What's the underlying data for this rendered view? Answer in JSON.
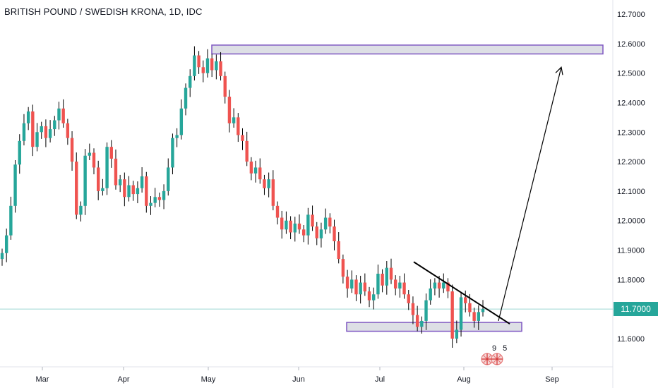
{
  "chart_title": "BRITISH POUND / SWEDISH KRONA, 1D, IDC",
  "current_price": "11.7000",
  "badge_number": "9 5",
  "colors": {
    "up": "#26a69a",
    "down": "#ef5350",
    "wick": "#000000",
    "zone_fill": "#d1d4dc",
    "zone_border": "#7e57c2",
    "price_line": "#9fd8d4",
    "text": "#131722",
    "axis_line": "#d6d9e0"
  },
  "chart_data": {
    "type": "candlestick",
    "title": "BRITISH POUND / SWEDISH KRONA, 1D, IDC",
    "ylim": [
      11.5,
      12.74
    ],
    "y_ticks": [
      "12.7000",
      "12.6000",
      "12.5000",
      "12.4000",
      "12.3000",
      "12.2000",
      "12.1000",
      "12.0000",
      "11.9000",
      "11.8000",
      "11.7000",
      "11.6000"
    ],
    "x_ticks": [
      "Mar",
      "Apr",
      "May",
      "Jun",
      "Jul",
      "Aug",
      "Sep"
    ],
    "current_price": 11.7,
    "price_tags": [
      {
        "v": 11.89,
        "c": "up"
      },
      {
        "v": 11.95,
        "c": "up"
      },
      {
        "v": 12.05,
        "c": "up"
      },
      {
        "v": 12.19,
        "c": "up"
      },
      {
        "v": 12.27,
        "c": "up"
      },
      {
        "v": 12.33,
        "c": "up"
      },
      {
        "v": 12.37,
        "c": "up"
      },
      {
        "v": 12.25,
        "c": "down"
      },
      {
        "v": 12.3,
        "c": "up"
      },
      {
        "v": 12.32,
        "c": "up"
      },
      {
        "v": 12.28,
        "c": "down"
      },
      {
        "v": 12.31,
        "c": "up"
      },
      {
        "v": 12.34,
        "c": "up"
      },
      {
        "v": 12.38,
        "c": "up"
      },
      {
        "v": 12.33,
        "c": "down"
      },
      {
        "v": 12.28,
        "c": "down"
      },
      {
        "v": 12.2,
        "c": "down"
      },
      {
        "v": 12.02,
        "c": "down"
      },
      {
        "v": 12.05,
        "c": "up"
      },
      {
        "v": 12.22,
        "c": "up"
      },
      {
        "v": 12.23,
        "c": "down"
      },
      {
        "v": 12.18,
        "c": "down"
      },
      {
        "v": 12.1,
        "c": "down"
      },
      {
        "v": 12.11,
        "c": "up"
      },
      {
        "v": 12.25,
        "c": "up"
      },
      {
        "v": 12.21,
        "c": "down"
      },
      {
        "v": 12.12,
        "c": "down"
      },
      {
        "v": 12.14,
        "c": "up"
      },
      {
        "v": 12.08,
        "c": "down"
      },
      {
        "v": 12.12,
        "c": "up"
      },
      {
        "v": 12.09,
        "c": "down"
      },
      {
        "v": 12.11,
        "c": "up"
      },
      {
        "v": 12.15,
        "c": "up"
      },
      {
        "v": 12.05,
        "c": "down"
      },
      {
        "v": 12.06,
        "c": "up"
      },
      {
        "v": 12.08,
        "c": "up"
      },
      {
        "v": 12.07,
        "c": "down"
      },
      {
        "v": 12.1,
        "c": "up"
      },
      {
        "v": 12.18,
        "c": "up"
      },
      {
        "v": 12.28,
        "c": "up"
      },
      {
        "v": 12.29,
        "c": "up"
      },
      {
        "v": 12.38,
        "c": "up"
      },
      {
        "v": 12.45,
        "c": "up"
      },
      {
        "v": 12.49,
        "c": "up"
      },
      {
        "v": 12.56,
        "c": "up"
      },
      {
        "v": 12.52,
        "c": "down"
      },
      {
        "v": 12.5,
        "c": "down"
      },
      {
        "v": 12.55,
        "c": "up"
      },
      {
        "v": 12.51,
        "c": "down"
      },
      {
        "v": 12.54,
        "c": "up"
      },
      {
        "v": 12.49,
        "c": "down"
      },
      {
        "v": 12.42,
        "c": "down"
      },
      {
        "v": 12.33,
        "c": "down"
      },
      {
        "v": 12.35,
        "c": "up"
      },
      {
        "v": 12.29,
        "c": "down"
      },
      {
        "v": 12.27,
        "c": "down"
      },
      {
        "v": 12.2,
        "c": "down"
      },
      {
        "v": 12.16,
        "c": "down"
      },
      {
        "v": 12.18,
        "c": "up"
      },
      {
        "v": 12.14,
        "c": "down"
      },
      {
        "v": 12.11,
        "c": "down"
      },
      {
        "v": 12.14,
        "c": "up"
      },
      {
        "v": 12.05,
        "c": "down"
      },
      {
        "v": 12.01,
        "c": "down"
      },
      {
        "v": 11.97,
        "c": "down"
      },
      {
        "v": 12.0,
        "c": "up"
      },
      {
        "v": 11.96,
        "c": "down"
      },
      {
        "v": 11.99,
        "c": "up"
      },
      {
        "v": 11.97,
        "c": "down"
      },
      {
        "v": 11.95,
        "c": "down"
      },
      {
        "v": 12.02,
        "c": "up"
      },
      {
        "v": 11.98,
        "c": "down"
      },
      {
        "v": 11.94,
        "c": "down"
      },
      {
        "v": 11.97,
        "c": "up"
      },
      {
        "v": 12.01,
        "c": "up"
      },
      {
        "v": 11.98,
        "c": "down"
      },
      {
        "v": 11.93,
        "c": "down"
      },
      {
        "v": 11.87,
        "c": "down"
      },
      {
        "v": 11.81,
        "c": "down"
      },
      {
        "v": 11.77,
        "c": "down"
      },
      {
        "v": 11.8,
        "c": "up"
      },
      {
        "v": 11.75,
        "c": "down"
      },
      {
        "v": 11.79,
        "c": "up"
      },
      {
        "v": 11.76,
        "c": "down"
      },
      {
        "v": 11.73,
        "c": "down"
      },
      {
        "v": 11.75,
        "c": "up"
      },
      {
        "v": 11.82,
        "c": "up"
      },
      {
        "v": 11.78,
        "c": "down"
      },
      {
        "v": 11.84,
        "c": "up"
      },
      {
        "v": 11.8,
        "c": "down"
      },
      {
        "v": 11.77,
        "c": "down"
      },
      {
        "v": 11.79,
        "c": "up"
      },
      {
        "v": 11.75,
        "c": "down"
      },
      {
        "v": 11.72,
        "c": "down"
      },
      {
        "v": 11.68,
        "c": "down"
      },
      {
        "v": 11.64,
        "c": "down"
      },
      {
        "v": 11.66,
        "c": "up"
      },
      {
        "v": 11.73,
        "c": "up"
      },
      {
        "v": 11.77,
        "c": "up"
      },
      {
        "v": 11.79,
        "c": "up"
      },
      {
        "v": 11.77,
        "c": "down"
      },
      {
        "v": 11.79,
        "c": "up"
      },
      {
        "v": 11.76,
        "c": "down"
      },
      {
        "v": 11.6,
        "c": "down"
      },
      {
        "v": 11.63,
        "c": "up"
      },
      {
        "v": 11.74,
        "c": "up"
      },
      {
        "v": 11.72,
        "c": "down"
      },
      {
        "v": 11.69,
        "c": "down"
      },
      {
        "v": 11.66,
        "c": "down"
      },
      {
        "v": 11.69,
        "c": "up"
      },
      {
        "v": 11.7,
        "c": "up"
      }
    ],
    "candles_note": "values above are candle closes in price units; opens are the previous close",
    "ohlc_extremes": {
      "high": 12.61,
      "low": 11.51
    },
    "zones": [
      {
        "name": "resistance-zone",
        "from": 12.565,
        "to": 12.595,
        "start": "May",
        "end": "Sep"
      },
      {
        "name": "support-zone",
        "from": 11.625,
        "to": 11.655,
        "start": "Jul",
        "end": "Aug"
      }
    ],
    "trendline": {
      "from": 11.86,
      "to": 11.65
    },
    "projection_arrow": {
      "from": 11.66,
      "to": 12.52
    }
  }
}
